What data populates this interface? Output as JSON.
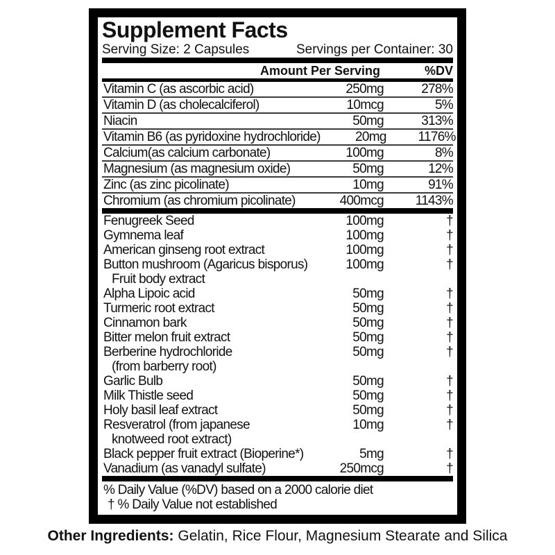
{
  "label": {
    "title": "Supplement Facts",
    "serving_size": "Serving Size: 2 Capsules",
    "servings_per_container": "Servings per Container: 30",
    "columns": {
      "amount": "Amount Per Serving",
      "dv": "%DV"
    },
    "nutrients": [
      {
        "name": "Vitamin C (as ascorbic acid)",
        "amount": "250mg",
        "dv": "278%"
      },
      {
        "name": "Vitamin D (as cholecalciferol)",
        "amount": "10mcg",
        "dv": "5%"
      },
      {
        "name": "Niacin",
        "amount": "50mg",
        "dv": "313%"
      },
      {
        "name": "Vitamin B6 (as pyridoxine hydrochloride)",
        "amount": "20mg",
        "dv": "1176%"
      },
      {
        "name": "Calcium(as calcium carbonate)",
        "amount": "100mg",
        "dv": "8%"
      },
      {
        "name": "Magnesium (as magnesium oxide)",
        "amount": "50mg",
        "dv": "12%"
      },
      {
        "name": "Zinc (as zinc picolinate)",
        "amount": "10mg",
        "dv": "91%"
      },
      {
        "name": "Chromium (as chromium picolinate)",
        "amount": "400mcg",
        "dv": "1143%"
      }
    ],
    "botanicals": [
      {
        "name": "Fenugreek Seed",
        "name2": "",
        "amount": "100mg",
        "dv": "†"
      },
      {
        "name": "Gymnema leaf",
        "name2": "",
        "amount": "100mg",
        "dv": "†"
      },
      {
        "name": "American ginseng root extract",
        "name2": "",
        "amount": "100mg",
        "dv": "†"
      },
      {
        "name": "Button mushroom (Agaricus bisporus)",
        "name2": "Fruit body extract",
        "amount": "100mg",
        "dv": "†"
      },
      {
        "name": "Alpha Lipoic acid",
        "name2": "",
        "amount": "50mg",
        "dv": "†"
      },
      {
        "name": "Turmeric root extract",
        "name2": "",
        "amount": "50mg",
        "dv": "†"
      },
      {
        "name": "Cinnamon bark",
        "name2": "",
        "amount": "50mg",
        "dv": "†"
      },
      {
        "name": "Bitter melon fruit extract",
        "name2": "",
        "amount": "50mg",
        "dv": "†"
      },
      {
        "name": "Berberine hydrochloride",
        "name2": "(from barberry root)",
        "amount": "50mg",
        "dv": "†"
      },
      {
        "name": "Garlic Bulb",
        "name2": "",
        "amount": "50mg",
        "dv": "†"
      },
      {
        "name": "Milk Thistle seed",
        "name2": "",
        "amount": "50mg",
        "dv": "†"
      },
      {
        "name": "Holy basil leaf extract",
        "name2": "",
        "amount": "50mg",
        "dv": "†"
      },
      {
        "name": "Resveratrol (from japanese",
        "name2": "knotweed root extract)",
        "amount": "10mg",
        "dv": "†"
      },
      {
        "name": "Black pepper fruit extract (Bioperine*)",
        "name2": "",
        "amount": "5mg",
        "dv": "†"
      },
      {
        "name": "Vanadium (as vanadyl sulfate)",
        "name2": "",
        "amount": "250mcg",
        "dv": "†"
      }
    ],
    "footnotes": [
      "% Daily Value (%DV) based on a 2000 calorie diet",
      "† % Daily Value not established"
    ]
  },
  "other_ingredients": {
    "label": "Other Ingredients:",
    "text": " Gelatin, Rice Flour, Magnesium Stearate and Silica"
  }
}
